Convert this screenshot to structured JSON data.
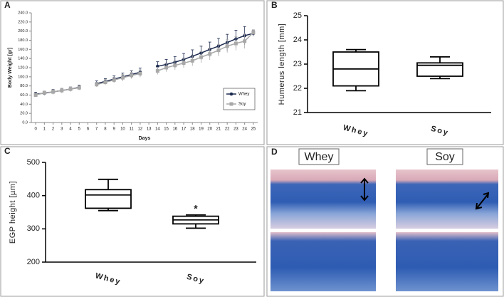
{
  "chart_data": [
    {
      "type": "line",
      "panel": "A",
      "y_label": "Body Weight [gr]",
      "x_label": "Days",
      "x": [
        0,
        1,
        2,
        3,
        4,
        5,
        6,
        7,
        8,
        9,
        10,
        11,
        12,
        13,
        14,
        15,
        16,
        17,
        18,
        19,
        20,
        21,
        22,
        23,
        24,
        25
      ],
      "series": [
        {
          "name": "Whey",
          "color": "#1c2a4f",
          "marker": "circle",
          "values": [
            62,
            64,
            67,
            70,
            73,
            77,
            null,
            85,
            90,
            95,
            100,
            105,
            110,
            null,
            123,
            127,
            132,
            138,
            145,
            152,
            160,
            167,
            175,
            183,
            190,
            195
          ],
          "errors": [
            4,
            4,
            5,
            5,
            5,
            5,
            null,
            6,
            6,
            7,
            8,
            8,
            9,
            null,
            10,
            11,
            12,
            13,
            14,
            15,
            16,
            17,
            18,
            19,
            20,
            6
          ]
        },
        {
          "name": "Soy",
          "color": "#a8a8a8",
          "marker": "square",
          "values": [
            60,
            65,
            67,
            70,
            73,
            76,
            null,
            83,
            88,
            93,
            98,
            103,
            107,
            null,
            113,
            120,
            125,
            130,
            135,
            143,
            150,
            158,
            167,
            173,
            178,
            197
          ],
          "errors": [
            4,
            4,
            4,
            5,
            5,
            5,
            null,
            5,
            6,
            6,
            7,
            7,
            8,
            null,
            8,
            9,
            10,
            10,
            11,
            12,
            13,
            13,
            14,
            15,
            16,
            6
          ]
        }
      ],
      "xlim": [
        -0.5,
        25.5
      ],
      "xticks": [
        0,
        1,
        2,
        3,
        4,
        5,
        6,
        7,
        8,
        9,
        10,
        11,
        12,
        13,
        14,
        15,
        16,
        17,
        18,
        19,
        20,
        21,
        22,
        23,
        24,
        25
      ],
      "ylim": [
        0,
        240
      ],
      "yticks": [
        {
          "value": 0,
          "label": "0.0"
        },
        {
          "value": 20,
          "label": "20.0"
        },
        {
          "value": 40,
          "label": "40.0"
        },
        {
          "value": 60,
          "label": "60.0"
        },
        {
          "value": 80,
          "label": "80.0"
        },
        {
          "value": 100,
          "label": "100.0"
        },
        {
          "value": 120,
          "label": "120.0"
        },
        {
          "value": 140,
          "label": "140.0"
        },
        {
          "value": 160,
          "label": "160.0"
        },
        {
          "value": 180,
          "label": "180.0"
        },
        {
          "value": 200,
          "label": "200.0"
        },
        {
          "value": 220,
          "label": "220.0"
        },
        {
          "value": 240,
          "label": "240.0"
        }
      ],
      "legend": "lower-right"
    },
    {
      "type": "box",
      "panel": "B",
      "y_label": "Humerus length [mm]",
      "categories": [
        "Whey",
        "Soy"
      ],
      "boxes": [
        {
          "min": 21.9,
          "q1": 22.1,
          "median": 22.8,
          "q3": 23.5,
          "max": 23.6
        },
        {
          "min": 22.4,
          "q1": 22.5,
          "median": 22.95,
          "q3": 23.05,
          "max": 23.3
        }
      ],
      "ylim": [
        21,
        25
      ],
      "yticks": [
        21,
        22,
        23,
        24,
        25
      ]
    },
    {
      "type": "box",
      "panel": "C",
      "y_label": "EGP height [µm]",
      "categories": [
        "Whey",
        "Soy"
      ],
      "boxes": [
        {
          "min": 355,
          "q1": 362,
          "median": 402,
          "q3": 418,
          "max": 449
        },
        {
          "min": 302,
          "q1": 315,
          "median": 327,
          "q3": 338,
          "max": 342
        }
      ],
      "annotations": [
        null,
        "*"
      ],
      "ylim": [
        200,
        500
      ],
      "yticks": [
        200,
        300,
        400,
        500
      ]
    }
  ],
  "panel_d": {
    "panel": "D",
    "labels": [
      "Whey",
      "Soy"
    ]
  }
}
